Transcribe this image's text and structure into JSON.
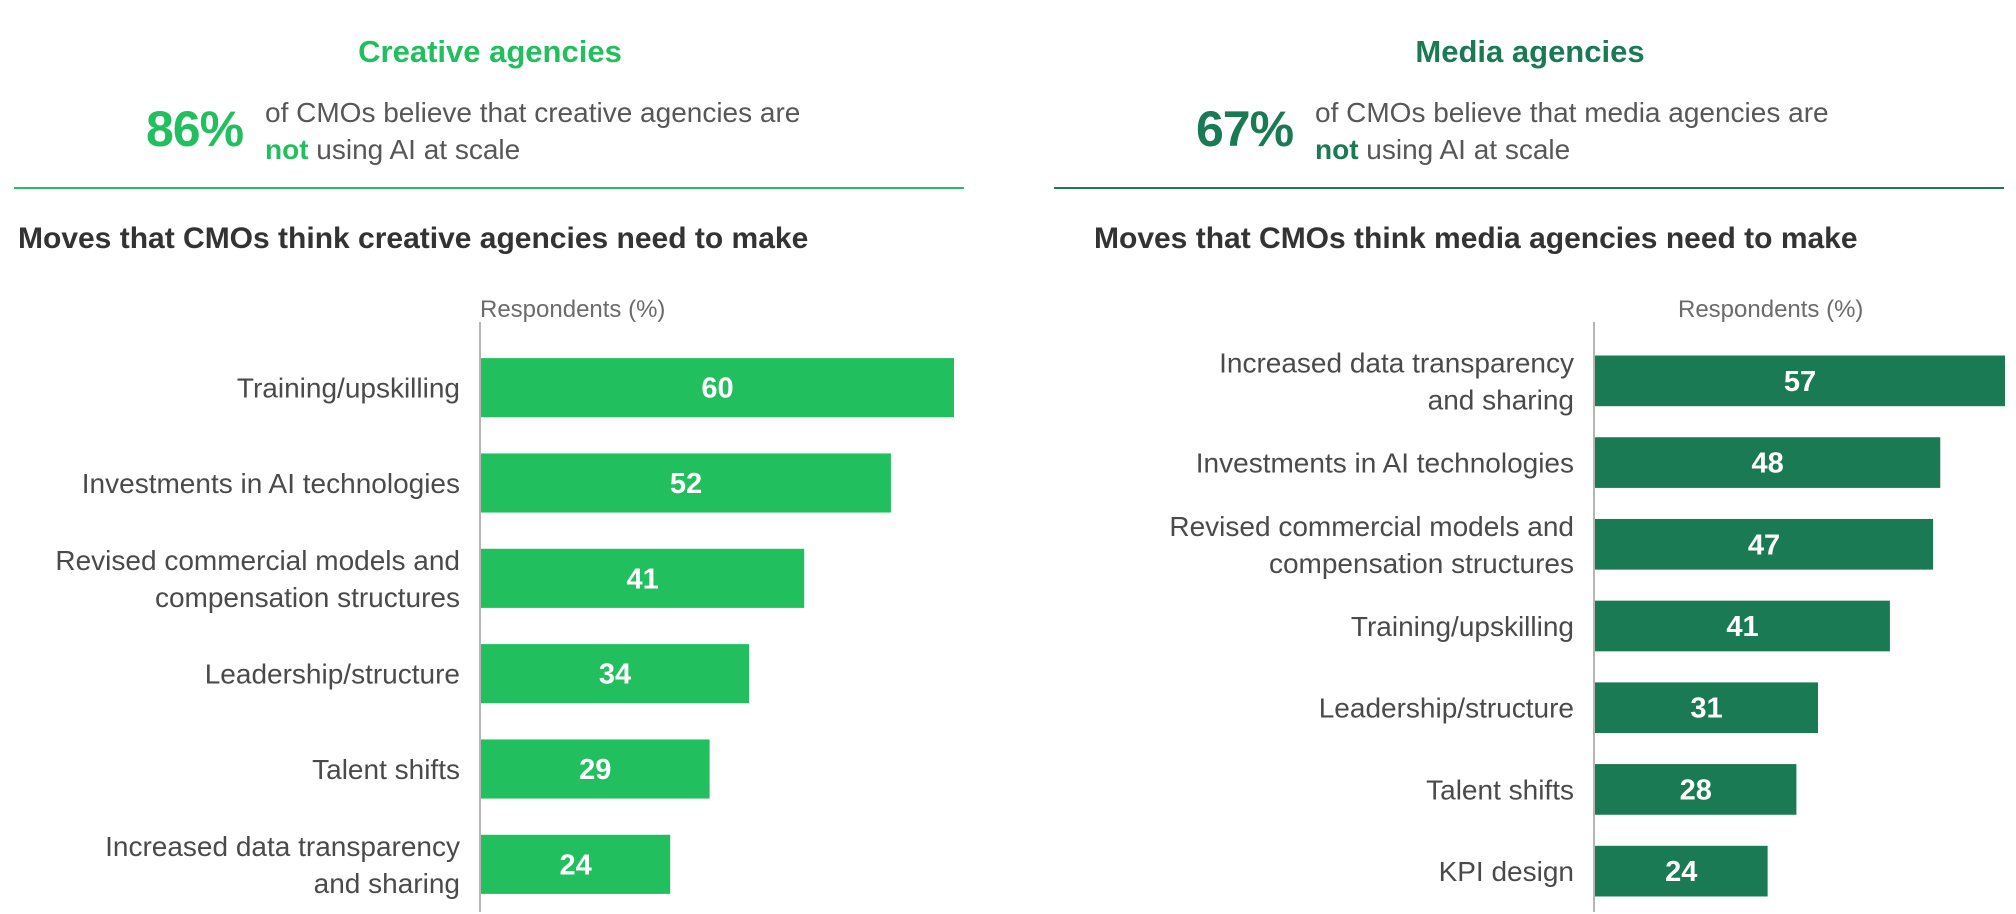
{
  "creative": {
    "title": "Creative agencies",
    "stat_pct": "86%",
    "stat_text_1": "of CMOs believe that creative agencies are",
    "stat_not": "not",
    "stat_text_2": " using AI at scale",
    "chart_title": "Moves that CMOs think creative agencies need to make",
    "axis_caption": "Respondents (%)",
    "color": "#22bf5f"
  },
  "media": {
    "title": "Media agencies",
    "stat_pct": "67%",
    "stat_text_1": "of CMOs believe that media agencies are",
    "stat_not": "not",
    "stat_text_2": " using AI at scale",
    "chart_title": "Moves that CMOs think media agencies need to make",
    "axis_caption": "Respondents (%)",
    "color": "#197a53"
  },
  "chart_data": [
    {
      "type": "bar",
      "orientation": "horizontal",
      "title": "Moves that CMOs think creative agencies need to make",
      "xlabel": "Respondents (%)",
      "categories": [
        "Training/upskilling",
        "Investments in AI technologies",
        "Revised commercial models and compensation structures",
        "Leadership/structure",
        "Talent shifts",
        "Increased data transparency and sharing"
      ],
      "category_lines": [
        [
          "Training/upskilling"
        ],
        [
          "Investments in AI technologies"
        ],
        [
          "Revised commercial models and",
          "compensation structures"
        ],
        [
          "Leadership/structure"
        ],
        [
          "Talent shifts"
        ],
        [
          "Increased data transparency",
          "and sharing"
        ]
      ],
      "values": [
        60,
        52,
        41,
        34,
        29,
        24
      ],
      "xlim": [
        0,
        60
      ],
      "color": "#22bf5f"
    },
    {
      "type": "bar",
      "orientation": "horizontal",
      "title": "Moves that CMOs think media agencies need to make",
      "xlabel": "Respondents (%)",
      "categories": [
        "Increased data transparency and sharing",
        "Investments in AI technologies",
        "Revised commercial models and compensation structures",
        "Training/upskilling",
        "Leadership/structure",
        "Talent shifts",
        "KPI design"
      ],
      "category_lines": [
        [
          "Increased data transparency",
          "and sharing"
        ],
        [
          "Investments in AI technologies"
        ],
        [
          "Revised commercial models and",
          "compensation structures"
        ],
        [
          "Training/upskilling"
        ],
        [
          "Leadership/structure"
        ],
        [
          "Talent shifts"
        ],
        [
          "KPI design"
        ]
      ],
      "values": [
        57,
        48,
        47,
        41,
        31,
        28,
        24
      ],
      "xlim": [
        0,
        57
      ],
      "color": "#197a53"
    }
  ]
}
